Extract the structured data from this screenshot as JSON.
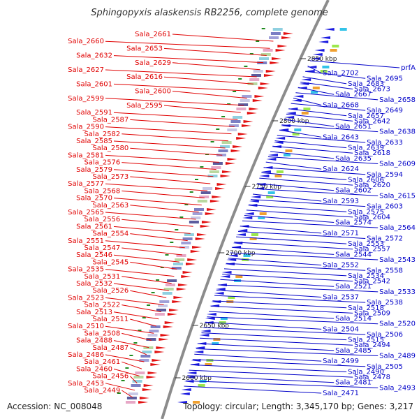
{
  "title": "Sphingopyxis alaskensis RB2256, complete genome",
  "footer": {
    "accession": "Accession: NC_008048",
    "summary": "Topology: circular; Length: 3,345,170 bp; Genes: 3,217"
  },
  "colors": {
    "reverse_label": "#e00000",
    "forward_label": "#0000c8",
    "backbone": "#8c8c8c",
    "gc_mark": "#1f8a1f"
  },
  "scale_marks": [
    "2850 kbp",
    "2800 kbp",
    "2750 kbp",
    "2700 kbp",
    "2650 kbp",
    "2600 kbp"
  ],
  "left_labels": [
    "Sala_2661",
    "Sala_2660",
    "Sala_2653",
    "Sala_2632",
    "Sala_2629",
    "Sala_2627",
    "Sala_2616",
    "Sala_2601",
    "Sala_2600",
    "Sala_2599",
    "Sala_2595",
    "Sala_2591",
    "Sala_2587",
    "Sala_2590",
    "Sala_2582",
    "Sala_2585",
    "Sala_2580",
    "Sala_2581",
    "Sala_2576",
    "Sala_2579",
    "Sala_2573",
    "Sala_2577",
    "Sala_2568",
    "Sala_2570",
    "Sala_2563",
    "Sala_2565",
    "Sala_2556",
    "Sala_2561",
    "Sala_2554",
    "Sala_2551",
    "Sala_2547",
    "Sala_2546",
    "Sala_2545",
    "Sala_2535",
    "Sala_2531",
    "Sala_2532",
    "Sala_2526",
    "Sala_2523",
    "Sala_2522",
    "Sala_2513",
    "Sala_2511",
    "Sala_2510",
    "Sala_2508",
    "Sala_2488",
    "Sala_2487",
    "Sala_2486",
    "Sala_2461",
    "Sala_2460",
    "Sala_2456",
    "Sala_2453",
    "Sala_2449"
  ],
  "right_labels": [
    "prfA",
    "Sala_2702",
    "Sala_2695",
    "Sala_2683",
    "Sala_2673",
    "Sala_2667",
    "Sala_2658",
    "Sala_2668",
    "Sala_2649",
    "Sala_2657",
    "Sala_2642",
    "Sala_2651",
    "Sala_2638",
    "Sala_2643",
    "Sala_2633",
    "Sala_2639",
    "Sala_2618",
    "Sala_2635",
    "Sala_2609",
    "Sala_2624",
    "Sala_2594",
    "Sala_2606",
    "Sala_2620",
    "Sala_2602",
    "Sala_2615",
    "Sala_2593",
    "Sala_2603",
    "Sala_2575",
    "Sala_2604",
    "Sala_2574",
    "Sala_2564",
    "Sala_2571",
    "Sala_2572",
    "Sala_2553",
    "Sala_2557",
    "Sala_2544",
    "Sala_2543",
    "Sala_2552",
    "Sala_2558",
    "Sala_2534",
    "Sala_2542",
    "Sala_2521",
    "Sala_2533",
    "Sala_2537",
    "Sala_2538",
    "Sala_2518",
    "Sala_2509",
    "Sala_2514",
    "Sala_2520",
    "Sala_2504",
    "Sala_2506",
    "Sala_2515",
    "Sala_2494",
    "Sala_2485",
    "Sala_2489",
    "Sala_2499",
    "Sala_2505",
    "Sala_2490",
    "Sala_2478",
    "Sala_2481",
    "Sala_2493",
    "Sala_2471"
  ]
}
